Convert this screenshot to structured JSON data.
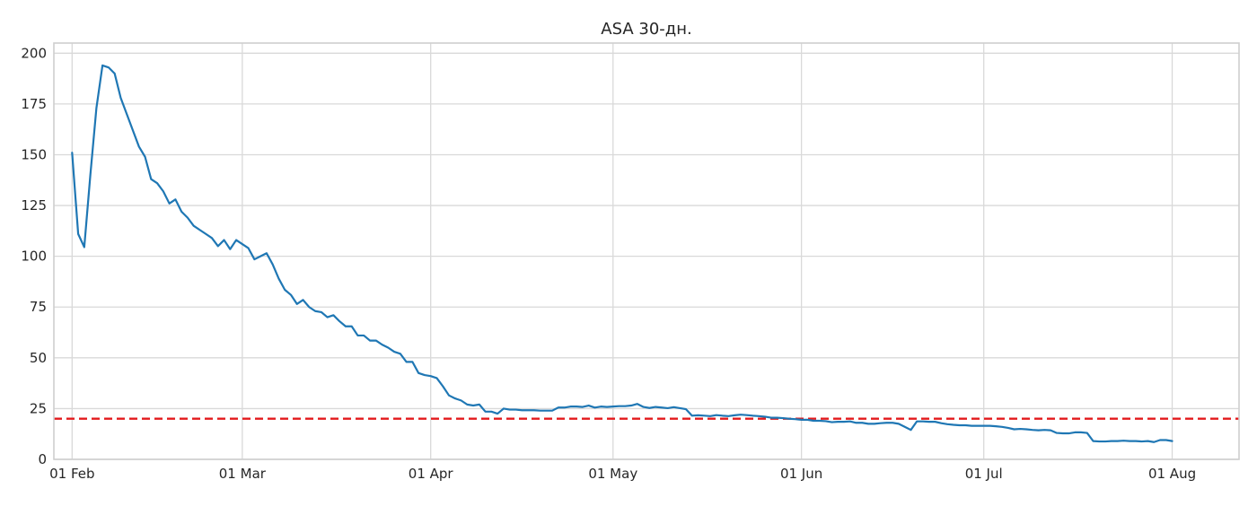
{
  "chart_data": {
    "type": "line",
    "title": "ASA 30-дн.",
    "xlabel": "",
    "ylabel": "",
    "x_type": "date",
    "xlim": [
      "2021-01-29",
      "2021-08-12"
    ],
    "ylim": [
      0,
      205
    ],
    "grid": true,
    "legend": "none",
    "x_ticks": [
      {
        "date": "2021-02-01",
        "label": "01 Feb"
      },
      {
        "date": "2021-03-01",
        "label": "01 Mar"
      },
      {
        "date": "2021-04-01",
        "label": "01 Apr"
      },
      {
        "date": "2021-05-01",
        "label": "01 May"
      },
      {
        "date": "2021-06-01",
        "label": "01 Jun"
      },
      {
        "date": "2021-07-01",
        "label": "01 Jul"
      },
      {
        "date": "2021-08-01",
        "label": "01 Aug"
      }
    ],
    "y_ticks": [
      0,
      25,
      50,
      75,
      100,
      125,
      150,
      175,
      200
    ],
    "threshold": {
      "value": 20,
      "color": "#e31a1c",
      "style": "dashed"
    },
    "series": [
      {
        "color": "#1f77b4",
        "points": [
          [
            "2021-02-01",
            151
          ],
          [
            "2021-02-02",
            111
          ],
          [
            "2021-02-03",
            104.5
          ],
          [
            "2021-02-04",
            140
          ],
          [
            "2021-02-05",
            173
          ],
          [
            "2021-02-06",
            194
          ],
          [
            "2021-02-07",
            193
          ],
          [
            "2021-02-08",
            190
          ],
          [
            "2021-02-09",
            178
          ],
          [
            "2021-02-10",
            170
          ],
          [
            "2021-02-11",
            162
          ],
          [
            "2021-02-12",
            154
          ],
          [
            "2021-02-13",
            149
          ],
          [
            "2021-02-14",
            138
          ],
          [
            "2021-02-15",
            136
          ],
          [
            "2021-02-16",
            132
          ],
          [
            "2021-02-17",
            126
          ],
          [
            "2021-02-18",
            128
          ],
          [
            "2021-02-19",
            122
          ],
          [
            "2021-02-20",
            119
          ],
          [
            "2021-02-21",
            115
          ],
          [
            "2021-02-22",
            113
          ],
          [
            "2021-02-23",
            111
          ],
          [
            "2021-02-24",
            109
          ],
          [
            "2021-02-25",
            105
          ],
          [
            "2021-02-26",
            108
          ],
          [
            "2021-02-27",
            103.5
          ],
          [
            "2021-02-28",
            108
          ],
          [
            "2021-03-01",
            106
          ],
          [
            "2021-03-02",
            104
          ],
          [
            "2021-03-03",
            98.5
          ],
          [
            "2021-03-04",
            100
          ],
          [
            "2021-03-05",
            101.5
          ],
          [
            "2021-03-06",
            96
          ],
          [
            "2021-03-07",
            89
          ],
          [
            "2021-03-08",
            83.5
          ],
          [
            "2021-03-09",
            81
          ],
          [
            "2021-03-10",
            76.5
          ],
          [
            "2021-03-11",
            78.5
          ],
          [
            "2021-03-12",
            75
          ],
          [
            "2021-03-13",
            73
          ],
          [
            "2021-03-14",
            72.5
          ],
          [
            "2021-03-15",
            70
          ],
          [
            "2021-03-16",
            71
          ],
          [
            "2021-03-17",
            68
          ],
          [
            "2021-03-18",
            65.5
          ],
          [
            "2021-03-19",
            65.5
          ],
          [
            "2021-03-20",
            61
          ],
          [
            "2021-03-21",
            61
          ],
          [
            "2021-03-22",
            58.5
          ],
          [
            "2021-03-23",
            58.5
          ],
          [
            "2021-03-24",
            56.5
          ],
          [
            "2021-03-25",
            55
          ],
          [
            "2021-03-26",
            53
          ],
          [
            "2021-03-27",
            52
          ],
          [
            "2021-03-28",
            48
          ],
          [
            "2021-03-29",
            48
          ],
          [
            "2021-03-30",
            42.5
          ],
          [
            "2021-03-31",
            41.5
          ],
          [
            "2021-04-01",
            41
          ],
          [
            "2021-04-02",
            40
          ],
          [
            "2021-04-03",
            36
          ],
          [
            "2021-04-04",
            31.5
          ],
          [
            "2021-04-05",
            30
          ],
          [
            "2021-04-06",
            29
          ],
          [
            "2021-04-07",
            27
          ],
          [
            "2021-04-08",
            26.5
          ],
          [
            "2021-04-09",
            27
          ],
          [
            "2021-04-10",
            23.5
          ],
          [
            "2021-04-11",
            23.5
          ],
          [
            "2021-04-12",
            22.5
          ],
          [
            "2021-04-13",
            25
          ],
          [
            "2021-04-14",
            24.5
          ],
          [
            "2021-04-15",
            24.5
          ],
          [
            "2021-04-16",
            24.2
          ],
          [
            "2021-04-17",
            24.2
          ],
          [
            "2021-04-18",
            24.2
          ],
          [
            "2021-04-19",
            24
          ],
          [
            "2021-04-20",
            24
          ],
          [
            "2021-04-21",
            24
          ],
          [
            "2021-04-22",
            25.5
          ],
          [
            "2021-04-23",
            25.5
          ],
          [
            "2021-04-24",
            26
          ],
          [
            "2021-04-25",
            26
          ],
          [
            "2021-04-26",
            25.8
          ],
          [
            "2021-04-27",
            26.5
          ],
          [
            "2021-04-28",
            25.5
          ],
          [
            "2021-04-29",
            26
          ],
          [
            "2021-04-30",
            25.8
          ],
          [
            "2021-05-01",
            26
          ],
          [
            "2021-05-02",
            26.2
          ],
          [
            "2021-05-03",
            26.2
          ],
          [
            "2021-05-04",
            26.5
          ],
          [
            "2021-05-05",
            27.3
          ],
          [
            "2021-05-06",
            25.8
          ],
          [
            "2021-05-07",
            25.3
          ],
          [
            "2021-05-08",
            25.8
          ],
          [
            "2021-05-09",
            25.5
          ],
          [
            "2021-05-10",
            25.2
          ],
          [
            "2021-05-11",
            25.7
          ],
          [
            "2021-05-12",
            25.2
          ],
          [
            "2021-05-13",
            24.7
          ],
          [
            "2021-05-14",
            21.5
          ],
          [
            "2021-05-15",
            21.7
          ],
          [
            "2021-05-16",
            21.5
          ],
          [
            "2021-05-17",
            21.3
          ],
          [
            "2021-05-18",
            21.8
          ],
          [
            "2021-05-19",
            21.5
          ],
          [
            "2021-05-20",
            21.3
          ],
          [
            "2021-05-21",
            21.7
          ],
          [
            "2021-05-22",
            22
          ],
          [
            "2021-05-23",
            21.8
          ],
          [
            "2021-05-24",
            21.5
          ],
          [
            "2021-05-25",
            21.3
          ],
          [
            "2021-05-26",
            21
          ],
          [
            "2021-05-27",
            20.5
          ],
          [
            "2021-05-28",
            20.5
          ],
          [
            "2021-05-29",
            20.3
          ],
          [
            "2021-05-30",
            20
          ],
          [
            "2021-05-31",
            19.8
          ],
          [
            "2021-06-01",
            19.5
          ],
          [
            "2021-06-02",
            19.5
          ],
          [
            "2021-06-03",
            19
          ],
          [
            "2021-06-04",
            19
          ],
          [
            "2021-06-05",
            18.8
          ],
          [
            "2021-06-06",
            18.3
          ],
          [
            "2021-06-07",
            18.5
          ],
          [
            "2021-06-08",
            18.5
          ],
          [
            "2021-06-09",
            18.7
          ],
          [
            "2021-06-10",
            18
          ],
          [
            "2021-06-11",
            18
          ],
          [
            "2021-06-12",
            17.5
          ],
          [
            "2021-06-13",
            17.5
          ],
          [
            "2021-06-14",
            17.8
          ],
          [
            "2021-06-15",
            18
          ],
          [
            "2021-06-16",
            18
          ],
          [
            "2021-06-17",
            17.5
          ],
          [
            "2021-06-18",
            16
          ],
          [
            "2021-06-19",
            14.5
          ],
          [
            "2021-06-20",
            18.7
          ],
          [
            "2021-06-21",
            18.7
          ],
          [
            "2021-06-22",
            18.5
          ],
          [
            "2021-06-23",
            18.5
          ],
          [
            "2021-06-24",
            17.8
          ],
          [
            "2021-06-25",
            17.3
          ],
          [
            "2021-06-26",
            17
          ],
          [
            "2021-06-27",
            16.8
          ],
          [
            "2021-06-28",
            16.8
          ],
          [
            "2021-06-29",
            16.5
          ],
          [
            "2021-06-30",
            16.5
          ],
          [
            "2021-07-01",
            16.5
          ],
          [
            "2021-07-02",
            16.5
          ],
          [
            "2021-07-03",
            16.3
          ],
          [
            "2021-07-04",
            16
          ],
          [
            "2021-07-05",
            15.5
          ],
          [
            "2021-07-06",
            14.8
          ],
          [
            "2021-07-07",
            15
          ],
          [
            "2021-07-08",
            14.8
          ],
          [
            "2021-07-09",
            14.5
          ],
          [
            "2021-07-10",
            14.3
          ],
          [
            "2021-07-11",
            14.5
          ],
          [
            "2021-07-12",
            14.3
          ],
          [
            "2021-07-13",
            13
          ],
          [
            "2021-07-14",
            12.8
          ],
          [
            "2021-07-15",
            12.8
          ],
          [
            "2021-07-16",
            13.3
          ],
          [
            "2021-07-17",
            13.3
          ],
          [
            "2021-07-18",
            13
          ],
          [
            "2021-07-19",
            9
          ],
          [
            "2021-07-20",
            8.8
          ],
          [
            "2021-07-21",
            8.8
          ],
          [
            "2021-07-22",
            9
          ],
          [
            "2021-07-23",
            9
          ],
          [
            "2021-07-24",
            9.2
          ],
          [
            "2021-07-25",
            9
          ],
          [
            "2021-07-26",
            9
          ],
          [
            "2021-07-27",
            8.8
          ],
          [
            "2021-07-28",
            9
          ],
          [
            "2021-07-29",
            8.5
          ],
          [
            "2021-07-30",
            9.5
          ],
          [
            "2021-07-31",
            9.5
          ],
          [
            "2021-08-01",
            9
          ]
        ]
      }
    ]
  }
}
